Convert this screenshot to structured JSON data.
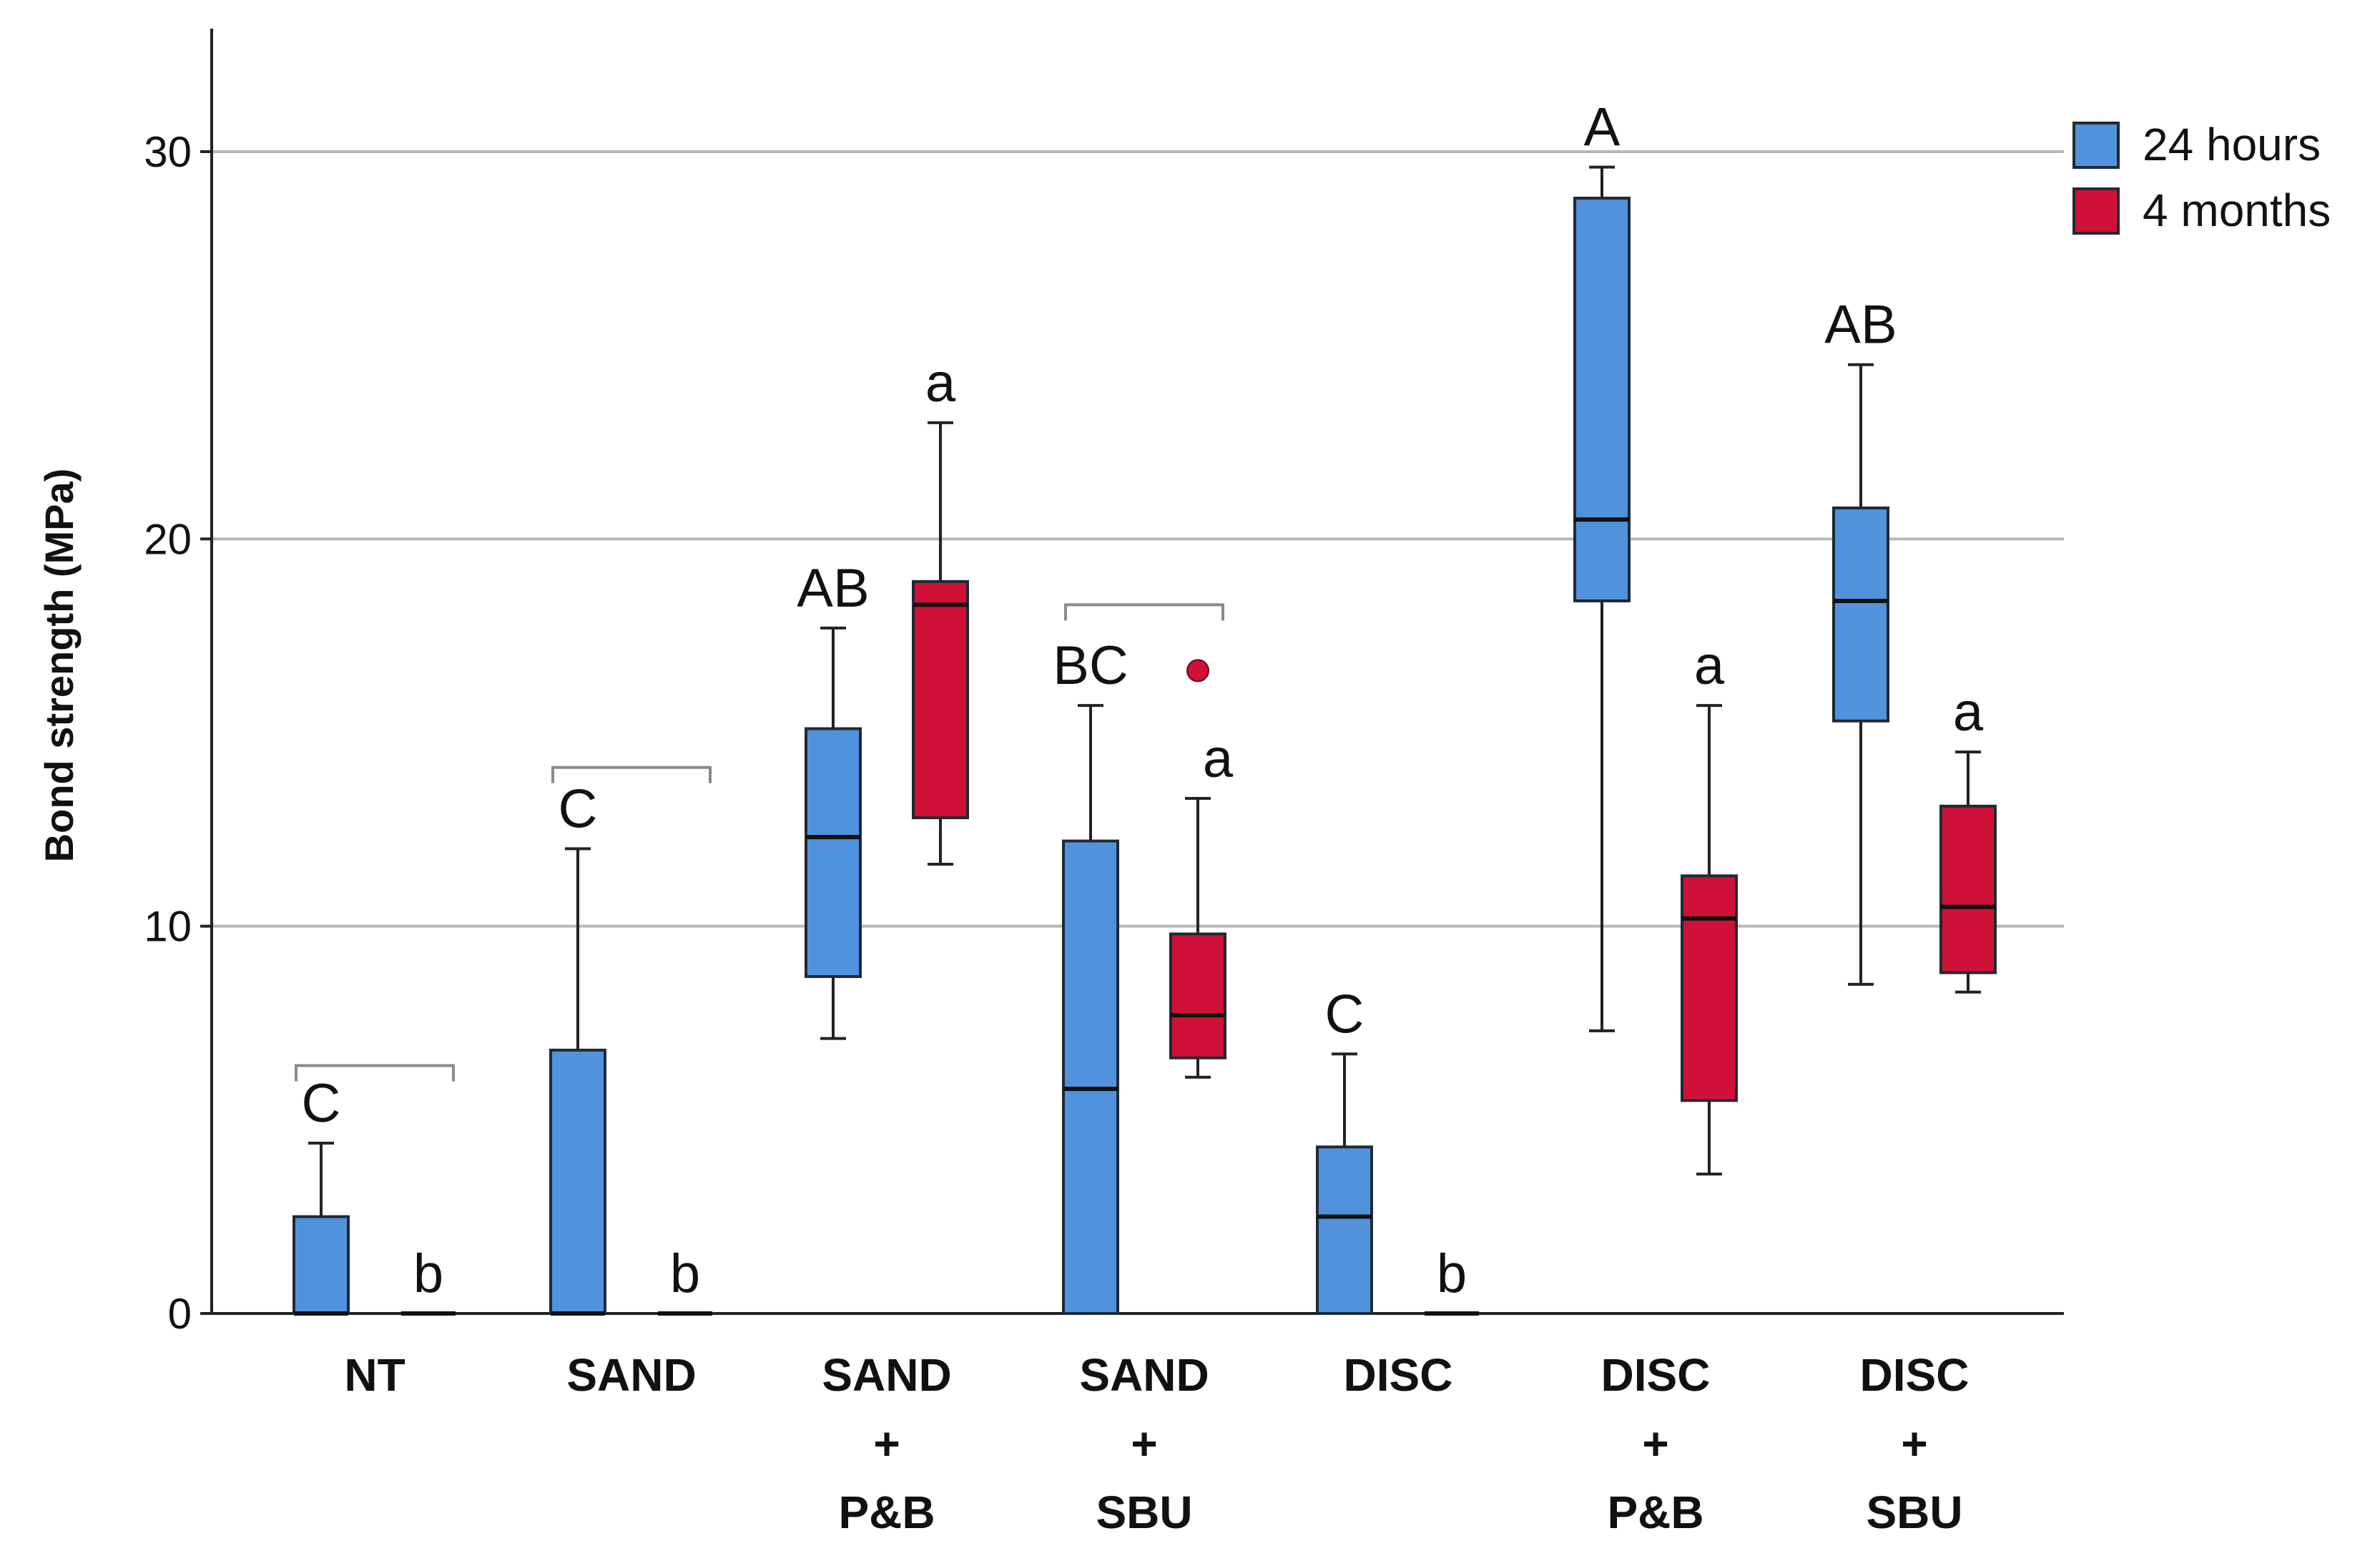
{
  "chart_data": {
    "type": "boxplot",
    "ylabel": "Bond strength (MPa)",
    "ylim": [
      0,
      33
    ],
    "yticks": [
      0,
      10,
      20,
      30
    ],
    "grid": true,
    "legend_position": "top-right",
    "colors": {
      "24 hours": "#5192dd",
      "4 months": "#cf1137"
    },
    "series_names": [
      "24 hours",
      "4 months"
    ],
    "categories": [
      {
        "lines": [
          "NT"
        ]
      },
      {
        "lines": [
          "SAND"
        ]
      },
      {
        "lines": [
          "SAND",
          "+",
          "P&B"
        ]
      },
      {
        "lines": [
          "SAND",
          "+",
          "SBU"
        ]
      },
      {
        "lines": [
          "DISC"
        ]
      },
      {
        "lines": [
          "DISC",
          "+",
          "P&B"
        ]
      },
      {
        "lines": [
          "DISC",
          "+",
          "SBU"
        ]
      }
    ],
    "boxes": [
      {
        "category": "NT",
        "series": "24 hours",
        "min": 0,
        "q1": 0,
        "median": 0,
        "q3": 2.5,
        "max": 4.4,
        "label": "C"
      },
      {
        "category": "NT",
        "series": "4 months",
        "min": 0,
        "q1": 0,
        "median": 0,
        "q3": 0,
        "max": 0,
        "label": "b"
      },
      {
        "category": "SAND",
        "series": "24 hours",
        "min": 0,
        "q1": 0,
        "median": 0,
        "q3": 6.8,
        "max": 12.0,
        "label": "C"
      },
      {
        "category": "SAND",
        "series": "4 months",
        "min": 0,
        "q1": 0,
        "median": 0,
        "q3": 0,
        "max": 0,
        "label": "b"
      },
      {
        "category": "SAND + P&B",
        "series": "24 hours",
        "min": 7.1,
        "q1": 8.7,
        "median": 12.3,
        "q3": 15.1,
        "max": 17.7,
        "label": "AB"
      },
      {
        "category": "SAND + P&B",
        "series": "4 months",
        "min": 11.6,
        "q1": 12.8,
        "median": 18.3,
        "q3": 18.9,
        "max": 23.0,
        "label": "a"
      },
      {
        "category": "SAND + SBU",
        "series": "24 hours",
        "min": 0,
        "q1": 0,
        "median": 5.8,
        "q3": 12.2,
        "max": 15.7,
        "label": "BC"
      },
      {
        "category": "SAND + SBU",
        "series": "4 months",
        "min": 6.1,
        "q1": 6.6,
        "median": 7.7,
        "q3": 9.8,
        "max": 13.3,
        "label": "a",
        "outliers": [
          16.6
        ]
      },
      {
        "category": "DISC",
        "series": "24 hours",
        "min": 0,
        "q1": 0,
        "median": 2.5,
        "q3": 4.3,
        "max": 6.7,
        "label": "C"
      },
      {
        "category": "DISC",
        "series": "4 months",
        "min": 0,
        "q1": 0,
        "median": 0,
        "q3": 0,
        "max": 0,
        "label": "b"
      },
      {
        "category": "DISC + P&B",
        "series": "24 hours",
        "min": 7.3,
        "q1": 18.4,
        "median": 20.5,
        "q3": 28.8,
        "max": 29.6,
        "label": "A"
      },
      {
        "category": "DISC + P&B",
        "series": "4 months",
        "min": 3.6,
        "q1": 5.5,
        "median": 10.2,
        "q3": 11.3,
        "max": 15.7,
        "label": "a"
      },
      {
        "category": "DISC + SBU",
        "series": "24 hours",
        "min": 8.5,
        "q1": 15.3,
        "median": 18.4,
        "q3": 20.8,
        "max": 24.5,
        "label": "AB"
      },
      {
        "category": "DISC + SBU",
        "series": "4 months",
        "min": 8.3,
        "q1": 8.8,
        "median": 10.5,
        "q3": 13.1,
        "max": 14.5,
        "label": "a"
      }
    ],
    "brackets": [
      {
        "category": "NT",
        "value": 6.4
      },
      {
        "category": "SAND",
        "value": 14.1
      },
      {
        "category": "SAND + SBU",
        "value": 18.3
      }
    ]
  }
}
